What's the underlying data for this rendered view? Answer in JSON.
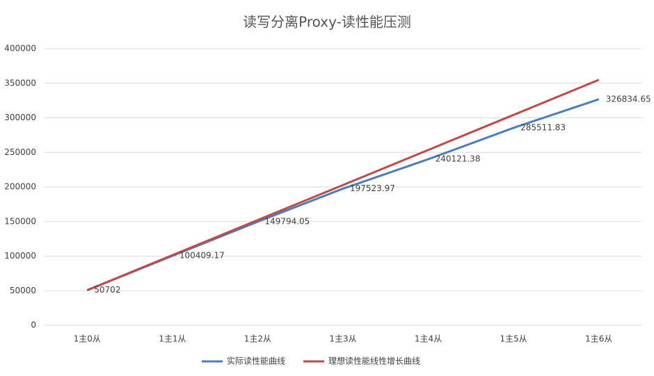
{
  "chart_data": {
    "type": "line",
    "title": "读写分离Proxy-读性能压测",
    "categories": [
      "1主0从",
      "1主1从",
      "1主2从",
      "1主3从",
      "1主4从",
      "1主5从",
      "1主6从"
    ],
    "series": [
      {
        "name": "实际读性能曲线",
        "color": "#4a7ebb",
        "values": [
          50702,
          100409.17,
          149794.05,
          197523.97,
          240121.38,
          285511.83,
          326834.65
        ],
        "data_labels": true
      },
      {
        "name": "理想读性能线性增长曲线",
        "color": "#be4b48",
        "values": [
          50702,
          101404,
          152106,
          202808,
          253510,
          304212,
          354914
        ],
        "data_labels": false
      }
    ],
    "ylim": [
      0,
      400000
    ],
    "yticks": [
      0,
      50000,
      100000,
      150000,
      200000,
      250000,
      300000,
      350000,
      400000
    ],
    "grid": true,
    "legend": "bottom"
  }
}
